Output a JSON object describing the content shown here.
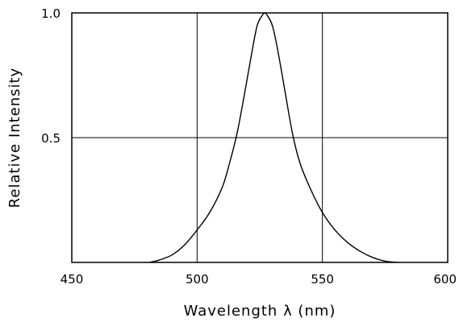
{
  "chart_data": {
    "type": "line",
    "title": "",
    "xlabel": "Wavelength λ  (nm)",
    "ylabel": "Relative  Intensity",
    "xlim": [
      450,
      600
    ],
    "ylim": [
      0,
      1.0
    ],
    "x_ticks": [
      450,
      500,
      550,
      600
    ],
    "x_tick_labels": [
      "450",
      "500",
      "550",
      "600"
    ],
    "y_ticks": [
      0.5,
      1.0
    ],
    "y_tick_labels": [
      "0.5",
      "1.0"
    ],
    "grid": true,
    "series": [
      {
        "x": [
          481,
          485,
          490,
          495,
          500,
          505,
          510,
          513,
          516,
          519,
          522,
          524,
          526,
          527,
          528,
          530,
          532,
          535,
          538,
          541,
          545,
          550,
          555,
          560,
          565,
          570,
          575,
          580
        ],
        "y": [
          0.0,
          0.01,
          0.03,
          0.07,
          0.13,
          0.2,
          0.3,
          0.4,
          0.52,
          0.68,
          0.85,
          0.95,
          0.99,
          1.0,
          0.99,
          0.95,
          0.86,
          0.69,
          0.52,
          0.4,
          0.3,
          0.2,
          0.13,
          0.08,
          0.045,
          0.02,
          0.005,
          0.0
        ]
      }
    ]
  }
}
